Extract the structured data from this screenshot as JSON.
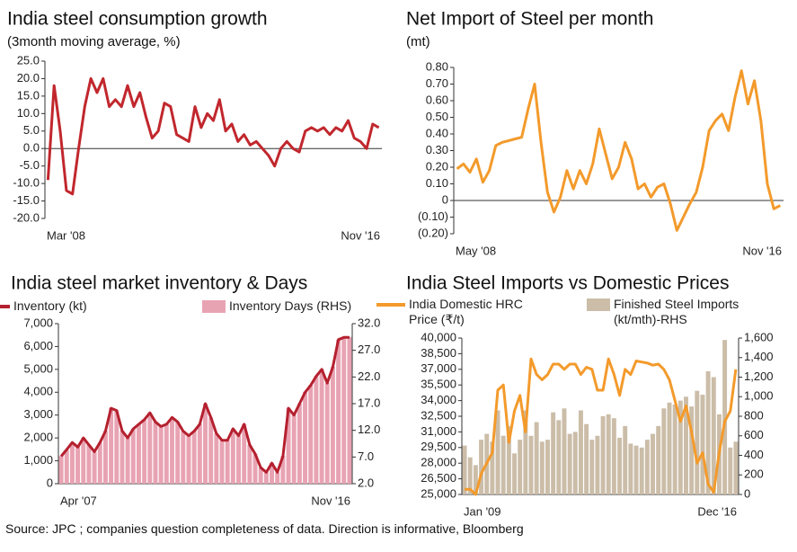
{
  "chart_data": [
    {
      "type": "line",
      "title": "India steel consumption growth",
      "subtitle": "(3month moving average, %)",
      "categories": [
        "Mar '08",
        null,
        null,
        null,
        null,
        null,
        null,
        null,
        null,
        null,
        null,
        null,
        null,
        null,
        null,
        null,
        null,
        null,
        null,
        null,
        null,
        null,
        null,
        null,
        null,
        null,
        null,
        null,
        null,
        null,
        null,
        null,
        null,
        null,
        null,
        null,
        null,
        null,
        null,
        null,
        null,
        null,
        null,
        null,
        null,
        null,
        null,
        null,
        null,
        null,
        null,
        null,
        null,
        null,
        "Nov '16"
      ],
      "series": [
        {
          "color": "#c1272d",
          "values": [
            -9,
            18,
            5,
            -12,
            -13,
            0,
            12,
            20,
            16,
            20,
            12,
            14,
            12,
            18,
            12,
            16,
            9,
            3,
            5,
            13,
            12,
            4,
            3,
            2,
            12,
            6,
            10,
            8,
            14,
            5,
            7,
            2,
            4,
            1,
            2,
            0,
            -2,
            -5,
            0,
            2,
            0,
            -1,
            5,
            6,
            5,
            6,
            4,
            6,
            5,
            8,
            3,
            2,
            0,
            7,
            6
          ]
        }
      ],
      "ylim": [
        -20,
        25
      ],
      "yticks": [
        {
          "value": 25,
          "label": "25.0"
        },
        {
          "value": 20,
          "label": "20.0"
        },
        {
          "value": 15,
          "label": "15.0"
        },
        {
          "value": 10,
          "label": "10.0"
        },
        {
          "value": 5,
          "label": "5.0"
        },
        {
          "value": 0,
          "label": "0.0"
        },
        {
          "value": -5,
          "label": "-5.0"
        },
        {
          "value": -10,
          "label": "-10.0"
        },
        {
          "value": -15,
          "label": "-15.0"
        },
        {
          "value": -20,
          "label": "-20.0"
        }
      ]
    },
    {
      "type": "line",
      "title": "Net Import of Steel per month",
      "subtitle": "(mt)",
      "categories": [
        "May '08",
        null,
        null,
        null,
        null,
        null,
        null,
        null,
        null,
        null,
        null,
        null,
        null,
        null,
        null,
        null,
        null,
        null,
        null,
        null,
        null,
        null,
        null,
        null,
        null,
        null,
        null,
        null,
        null,
        null,
        null,
        null,
        null,
        null,
        null,
        null,
        null,
        null,
        null,
        null,
        null,
        null,
        null,
        null,
        null,
        null,
        null,
        null,
        null,
        null,
        "Nov '16"
      ],
      "series": [
        {
          "color": "#f39a2b",
          "values": [
            0.19,
            0.22,
            0.17,
            0.25,
            0.11,
            0.18,
            0.33,
            0.35,
            0.36,
            0.37,
            0.38,
            0.55,
            0.7,
            0.35,
            0.05,
            -0.07,
            0.02,
            0.18,
            0.07,
            0.18,
            0.1,
            0.22,
            0.43,
            0.28,
            0.13,
            0.2,
            0.35,
            0.25,
            0.07,
            0.1,
            0.02,
            0.08,
            0.1,
            -0.02,
            -0.18,
            -0.1,
            -0.02,
            0.05,
            0.2,
            0.42,
            0.48,
            0.52,
            0.42,
            0.62,
            0.78,
            0.58,
            0.72,
            0.48,
            0.1,
            -0.05,
            -0.03
          ]
        }
      ],
      "ylim": [
        -0.2,
        0.8
      ],
      "yticks": [
        {
          "value": 0.8,
          "label": "0.80"
        },
        {
          "value": 0.7,
          "label": "0.70"
        },
        {
          "value": 0.6,
          "label": "0.60"
        },
        {
          "value": 0.5,
          "label": "0.50"
        },
        {
          "value": 0.4,
          "label": "0.40"
        },
        {
          "value": 0.3,
          "label": "0.30"
        },
        {
          "value": 0.2,
          "label": "0.20"
        },
        {
          "value": 0.1,
          "label": "0.10"
        },
        0,
        {
          "value": -0.1,
          "label": "(0.10)"
        },
        {
          "value": -0.2,
          "label": "(0.20)"
        }
      ]
    },
    {
      "type": "combo",
      "title": "India steel market inventory & Days",
      "categories": [
        "Apr '07",
        null,
        null,
        null,
        null,
        null,
        null,
        null,
        null,
        null,
        null,
        null,
        null,
        null,
        null,
        null,
        null,
        null,
        null,
        null,
        null,
        null,
        null,
        null,
        null,
        null,
        null,
        null,
        null,
        null,
        null,
        null,
        null,
        null,
        null,
        null,
        null,
        null,
        null,
        null,
        null,
        null,
        null,
        null,
        null,
        null,
        null,
        null,
        null,
        null,
        null,
        null,
        "Nov '16"
      ],
      "series": [
        {
          "name": "Inventory Days (RHS)",
          "kind": "bar",
          "axis": "y2",
          "color": "#e8a3b3",
          "values": [
            7.2,
            8.4,
            9.7,
            8.9,
            10.6,
            9.3,
            8.0,
            9.7,
            11.9,
            16.2,
            15.7,
            11.9,
            10.6,
            12.3,
            13.2,
            14.0,
            15.3,
            13.6,
            12.7,
            13.2,
            14.4,
            13.6,
            11.9,
            11.0,
            11.9,
            13.2,
            17.0,
            14.4,
            11.4,
            10.2,
            10.2,
            12.3,
            11.0,
            13.2,
            9.3,
            7.6,
            5.0,
            4.1,
            5.9,
            4.1,
            7.2,
            16.2,
            14.9,
            17.0,
            19.2,
            20.5,
            22.2,
            23.5,
            20.9,
            23.9,
            29.0,
            29.5,
            29.5
          ]
        },
        {
          "name": "Inventory (kt)",
          "kind": "line",
          "color": "#b5202e",
          "values": [
            1200,
            1500,
            1800,
            1600,
            2000,
            1700,
            1400,
            1800,
            2300,
            3300,
            3200,
            2300,
            2000,
            2400,
            2600,
            2800,
            3100,
            2700,
            2500,
            2600,
            2900,
            2700,
            2300,
            2100,
            2300,
            2600,
            3500,
            2900,
            2200,
            1900,
            1900,
            2400,
            2100,
            2600,
            1700,
            1300,
            700,
            500,
            900,
            500,
            1200,
            3300,
            3000,
            3500,
            4000,
            4300,
            4700,
            5000,
            4400,
            5100,
            6300,
            6400,
            6400
          ]
        }
      ],
      "ylim": [
        0,
        7000
      ],
      "yticks": [
        {
          "value": 7000,
          "label": "7,000"
        },
        {
          "value": 6000,
          "label": "6,000"
        },
        {
          "value": 5000,
          "label": "5,000"
        },
        {
          "value": 4000,
          "label": "4,000"
        },
        {
          "value": 3000,
          "label": "3,000"
        },
        {
          "value": 2000,
          "label": "2,000"
        },
        {
          "value": 1000,
          "label": "1,000"
        },
        0
      ],
      "y2lim": [
        2,
        32
      ],
      "y2ticks": [
        {
          "value": 32,
          "label": "32.0"
        },
        {
          "value": 27,
          "label": "27.0"
        },
        {
          "value": 22,
          "label": "22.0"
        },
        {
          "value": 17,
          "label": "17.0"
        },
        {
          "value": 12,
          "label": "12.0"
        },
        {
          "value": 7,
          "label": "7.0"
        },
        {
          "value": 2,
          "label": "2.0"
        }
      ]
    },
    {
      "type": "combo",
      "title": "India Steel Imports vs Domestic Prices",
      "categories": [
        "Jan '09",
        null,
        null,
        null,
        null,
        null,
        null,
        null,
        null,
        null,
        null,
        null,
        null,
        null,
        null,
        null,
        null,
        null,
        null,
        null,
        null,
        null,
        null,
        null,
        null,
        null,
        null,
        null,
        null,
        null,
        null,
        null,
        null,
        null,
        null,
        null,
        null,
        null,
        null,
        null,
        null,
        null,
        null,
        null,
        null,
        null,
        null,
        null,
        null,
        "Dec '16"
      ],
      "series": [
        {
          "name": "Finished Steel Imports (kt/mth)-RHS",
          "kind": "bar",
          "axis": "y2",
          "color": "#cbbda8",
          "values": [
            500,
            380,
            300,
            560,
            620,
            540,
            860,
            600,
            700,
            420,
            560,
            860,
            600,
            740,
            540,
            560,
            840,
            760,
            880,
            620,
            640,
            860,
            720,
            560,
            600,
            800,
            820,
            780,
            580,
            700,
            520,
            500,
            480,
            560,
            620,
            700,
            880,
            940,
            920,
            960,
            1000,
            900,
            1060,
            1020,
            1260,
            1200,
            820,
            1580,
            480,
            540
          ]
        },
        {
          "name": "India Domestic HRC Price (₹/t)",
          "kind": "line",
          "color": "#f39a2b",
          "values": [
            25500,
            25500,
            25000,
            27000,
            28000,
            29000,
            35000,
            35500,
            30000,
            33000,
            34500,
            31000,
            38000,
            36500,
            36000,
            36500,
            37500,
            37500,
            37000,
            37500,
            37500,
            36500,
            37200,
            37000,
            35000,
            35000,
            38000,
            36500,
            34500,
            37000,
            36500,
            37800,
            37700,
            37600,
            37400,
            37500,
            37000,
            36000,
            34000,
            32000,
            33500,
            31000,
            28000,
            29000,
            26000,
            25200,
            29000,
            32000,
            33000,
            37000
          ]
        }
      ],
      "ylim": [
        25000,
        40000
      ],
      "yticks": [
        {
          "value": 40000,
          "label": "40,000"
        },
        {
          "value": 38500,
          "label": "38,500"
        },
        {
          "value": 37000,
          "label": "37,000"
        },
        {
          "value": 35500,
          "label": "35,500"
        },
        {
          "value": 34000,
          "label": "34,000"
        },
        {
          "value": 32500,
          "label": "32,500"
        },
        {
          "value": 31000,
          "label": "31,000"
        },
        {
          "value": 29500,
          "label": "29,500"
        },
        {
          "value": 28000,
          "label": "28,000"
        },
        {
          "value": 26500,
          "label": "26,500"
        },
        {
          "value": 25000,
          "label": "25,000"
        }
      ],
      "y2lim": [
        0,
        1600
      ],
      "y2ticks": [
        {
          "value": 1600,
          "label": "1,600"
        },
        {
          "value": 1400,
          "label": "1,400"
        },
        {
          "value": 1200,
          "label": "1,200"
        },
        {
          "value": 1000,
          "label": "1,000"
        },
        {
          "value": 800,
          "label": "800"
        },
        {
          "value": 600,
          "label": "600"
        },
        {
          "value": 400,
          "label": "400"
        },
        {
          "value": 200,
          "label": "200"
        },
        0
      ]
    }
  ],
  "source": "Source: JPC ; companies question completeness of data. Direction is informative, Bloomberg"
}
